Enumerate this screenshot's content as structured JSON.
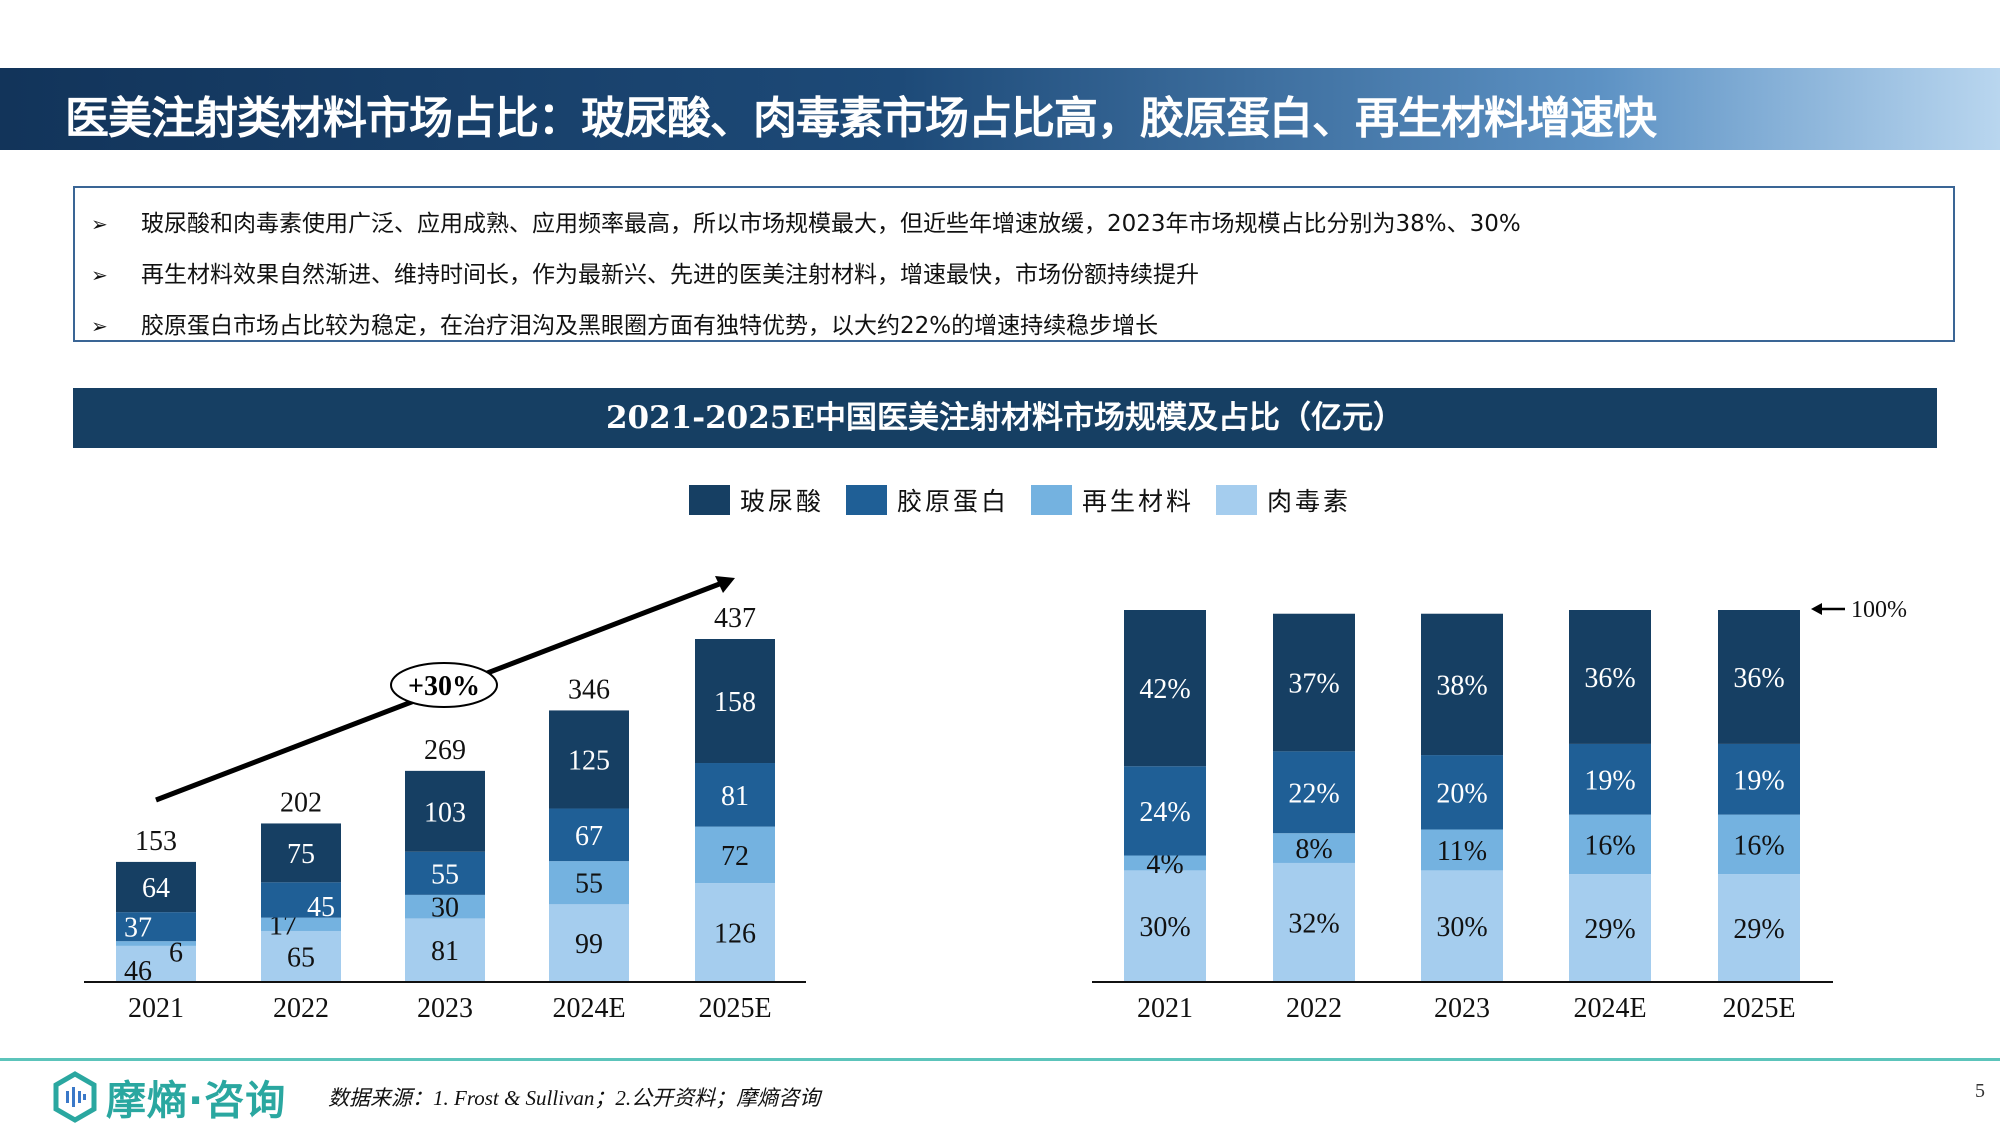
{
  "header": {
    "title": "医美注射类材料市场占比：玻尿酸、肉毒素市场占比高，胶原蛋白、再生材料增速快"
  },
  "bullets": [
    "玻尿酸和肉毒素使用广泛、应用成熟、应用频率最高，所以市场规模最大，但近些年增速放缓，2023年市场规模占比分别为38%、30%",
    "再生材料效果自然渐进、维持时间长，作为最新兴、先进的医美注射材料，增速最快，市场份额持续提升",
    "胶原蛋白市场占比较为稳定，在治疗泪沟及黑眼圈方面有独特优势，以大约22%的增速持续稳步增长"
  ],
  "bullet_mark": "➢",
  "chart_banner": "2021-2025E中国医美注射材料市场规模及占比（亿元）",
  "legend": [
    {
      "name": "玻尿酸",
      "color": "#163f63"
    },
    {
      "name": "胶原蛋白",
      "color": "#1f5f96"
    },
    {
      "name": "再生材料",
      "color": "#74b2e0"
    },
    {
      "name": "肉毒素",
      "color": "#a5cdee"
    }
  ],
  "chart_data": [
    {
      "type": "bar",
      "stacked": true,
      "categories": [
        "2021",
        "2022",
        "2023",
        "2024E",
        "2025E"
      ],
      "series": [
        {
          "name": "肉毒素",
          "values": [
            46,
            65,
            81,
            99,
            126
          ],
          "color": "#a5cdee"
        },
        {
          "name": "再生材料",
          "values": [
            6,
            17,
            30,
            55,
            72
          ],
          "color": "#74b2e0"
        },
        {
          "name": "胶原蛋白",
          "values": [
            37,
            45,
            55,
            67,
            81
          ],
          "color": "#1f5f96"
        },
        {
          "name": "玻尿酸",
          "values": [
            64,
            75,
            103,
            125,
            158
          ],
          "color": "#163f63"
        }
      ],
      "totals": [
        153,
        202,
        269,
        346,
        437
      ],
      "annotation": "+30%",
      "ylim": [
        0,
        437
      ]
    },
    {
      "type": "bar",
      "stacked": true,
      "percent": true,
      "categories": [
        "2021",
        "2022",
        "2023",
        "2024E",
        "2025E"
      ],
      "series": [
        {
          "name": "肉毒素",
          "values": [
            30,
            32,
            30,
            29,
            29
          ],
          "color": "#a5cdee"
        },
        {
          "name": "再生材料",
          "values": [
            4,
            8,
            11,
            16,
            16
          ],
          "color": "#74b2e0"
        },
        {
          "name": "胶原蛋白",
          "values": [
            24,
            22,
            20,
            19,
            19
          ],
          "color": "#1f5f96"
        },
        {
          "name": "玻尿酸",
          "values": [
            42,
            37,
            38,
            36,
            36
          ],
          "color": "#163f63"
        }
      ],
      "top_label": "100%",
      "ylim": [
        0,
        100
      ]
    }
  ],
  "footer": {
    "logo_text": "摩熵·咨询",
    "source": "数据来源：1. Frost & Sullivan；2.公开资料；摩熵咨询",
    "page": "5"
  }
}
